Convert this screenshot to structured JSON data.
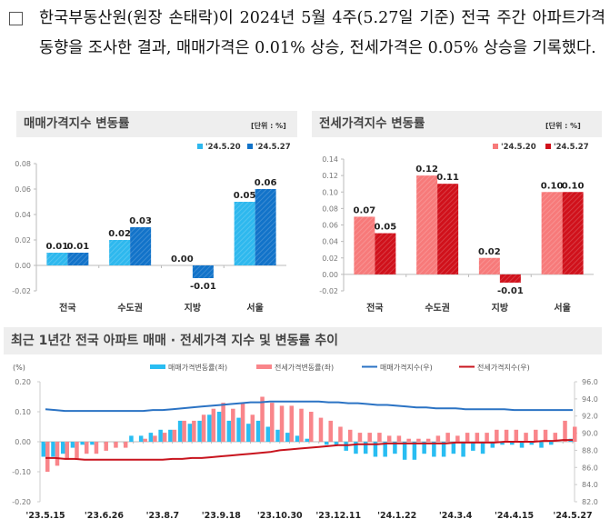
{
  "intro": {
    "bullet_icon": "empty-square-icon",
    "text": "한국부동산원(원장 손태락)이 2024년 5월 4주(5.27일 기준) 전국 주간 아파트가격 동향을 조사한 결과, 매매가격은 0.01% 상승, 전세가격은 0.05% 상승을 기록했다."
  },
  "colors": {
    "sale_prev": "#2EB8EE",
    "sale_curr": "#1273C9",
    "jeonse_prev": "#F77A7A",
    "jeonse_curr": "#D0111B",
    "sale_change": "#29BDF2",
    "jeonse_change": "#F9858A",
    "sale_index": "#2B73C4",
    "jeonse_index": "#C8141E",
    "title_bg": "#EEEEEE"
  },
  "chart_data": [
    {
      "type": "bar",
      "title": "매매가격지수 변동률",
      "unit_label": "[단위 : %]",
      "categories": [
        "전국",
        "수도권",
        "지방",
        "서울"
      ],
      "series": [
        {
          "name": "'24.5.20",
          "values": [
            0.01,
            0.02,
            0.0,
            0.05
          ],
          "labels": [
            "0.01",
            "0.02",
            "0.00",
            "0.05"
          ]
        },
        {
          "name": "'24.5.27",
          "values": [
            0.01,
            0.03,
            -0.01,
            0.06
          ],
          "labels": [
            "0.01",
            "0.03",
            "-0.01",
            "0.06"
          ]
        }
      ],
      "ylim": [
        -0.02,
        0.08
      ],
      "yticks": [
        "-0.02",
        "0.00",
        "0.02",
        "0.04",
        "0.06",
        "0.08"
      ],
      "ytick_values": [
        -0.02,
        0.0,
        0.02,
        0.04,
        0.06,
        0.08
      ],
      "legend": "top-right"
    },
    {
      "type": "bar",
      "title": "전세가격지수 변동률",
      "unit_label": "[단위 : %]",
      "categories": [
        "전국",
        "수도권",
        "지방",
        "서울"
      ],
      "series": [
        {
          "name": "'24.5.20",
          "values": [
            0.07,
            0.12,
            0.02,
            0.1
          ],
          "labels": [
            "0.07",
            "0.12",
            "0.02",
            "0.10"
          ]
        },
        {
          "name": "'24.5.27",
          "values": [
            0.05,
            0.11,
            -0.01,
            0.1
          ],
          "labels": [
            "0.05",
            "0.11",
            "-0.01",
            "0.10"
          ]
        }
      ],
      "ylim": [
        -0.02,
        0.14
      ],
      "yticks": [
        "-0.02",
        "0.00",
        "0.02",
        "0.04",
        "0.06",
        "0.08",
        "0.10",
        "0.12",
        "0.14"
      ],
      "ytick_values": [
        -0.02,
        0.0,
        0.02,
        0.04,
        0.06,
        0.08,
        0.1,
        0.12,
        0.14
      ],
      "legend": "top-right"
    },
    {
      "type": "bar+line",
      "title": "최근 1년간 전국 아파트 매매 · 전세가격 지수 및 변동률 추이",
      "ylabel_left": "(%)",
      "ylim_left": [
        -0.2,
        0.2
      ],
      "yticks_left": [
        "-0.20",
        "-0.10",
        "0.00",
        "0.10",
        "0.20"
      ],
      "ytick_values_left": [
        -0.2,
        -0.1,
        0.0,
        0.1,
        0.2
      ],
      "ylim_right": [
        82.0,
        96.0
      ],
      "yticks_right": [
        "82.0",
        "84.0",
        "86.0",
        "88.0",
        "90.0",
        "92.0",
        "94.0",
        "96.0"
      ],
      "ytick_values_right": [
        82,
        84,
        86,
        88,
        90,
        92,
        94,
        96
      ],
      "x_tick_labels": [
        "'23.5.15",
        "'23.6.26",
        "'23.8.7",
        "'23.9.18",
        "'23.10.30",
        "'23.12.11",
        "'24.1.22",
        "'24.3.4",
        "'24.4.15",
        "'24.5.27"
      ],
      "x_tick_every": 6,
      "legend": "top-center",
      "series": [
        {
          "name": "매매가격변동률(좌)",
          "kind": "bar",
          "axis": "left",
          "values": [
            -0.05,
            -0.05,
            -0.04,
            -0.02,
            -0.01,
            -0.01,
            0.0,
            0.0,
            0.0,
            0.02,
            0.02,
            0.03,
            0.04,
            0.04,
            0.07,
            0.06,
            0.07,
            0.09,
            0.1,
            0.07,
            0.08,
            0.06,
            0.07,
            0.05,
            0.04,
            0.03,
            0.02,
            0.01,
            0.0,
            -0.01,
            -0.01,
            -0.03,
            -0.04,
            -0.04,
            -0.05,
            -0.05,
            -0.04,
            -0.06,
            -0.06,
            -0.04,
            -0.05,
            -0.05,
            -0.04,
            -0.05,
            -0.03,
            -0.04,
            -0.02,
            -0.01,
            -0.01,
            -0.02,
            -0.01,
            -0.02,
            -0.01,
            0.0,
            0.01
          ]
        },
        {
          "name": "전세가격변동률(좌)",
          "kind": "bar",
          "axis": "left",
          "values": [
            -0.1,
            -0.08,
            -0.06,
            -0.06,
            -0.04,
            -0.04,
            -0.03,
            -0.02,
            -0.02,
            0.0,
            0.01,
            0.02,
            0.03,
            0.04,
            0.07,
            0.07,
            0.09,
            0.11,
            0.13,
            0.11,
            0.13,
            0.09,
            0.15,
            0.13,
            0.12,
            0.12,
            0.11,
            0.1,
            0.08,
            0.07,
            0.05,
            0.04,
            0.03,
            0.03,
            0.03,
            0.02,
            0.02,
            0.01,
            0.01,
            0.01,
            0.02,
            0.03,
            0.02,
            0.03,
            0.03,
            0.03,
            0.04,
            0.04,
            0.04,
            0.03,
            0.04,
            0.04,
            0.03,
            0.07,
            0.05
          ]
        },
        {
          "name": "매매가격지수(우)",
          "kind": "line",
          "axis": "right",
          "values": [
            92.8,
            92.7,
            92.6,
            92.6,
            92.6,
            92.6,
            92.6,
            92.6,
            92.6,
            92.6,
            92.6,
            92.7,
            92.7,
            92.8,
            92.9,
            93.0,
            93.1,
            93.2,
            93.3,
            93.4,
            93.5,
            93.6,
            93.6,
            93.7,
            93.7,
            93.7,
            93.7,
            93.7,
            93.7,
            93.6,
            93.6,
            93.5,
            93.5,
            93.4,
            93.3,
            93.3,
            93.2,
            93.1,
            93.0,
            93.0,
            92.9,
            92.9,
            92.9,
            92.8,
            92.8,
            92.8,
            92.8,
            92.8,
            92.7,
            92.7,
            92.7,
            92.7,
            92.7,
            92.7,
            92.7
          ]
        },
        {
          "name": "전세가격지수(우)",
          "kind": "line",
          "axis": "right",
          "values": [
            87.1,
            87.1,
            87.0,
            87.0,
            86.9,
            86.9,
            86.9,
            86.9,
            86.9,
            86.9,
            86.9,
            86.9,
            86.9,
            87.0,
            87.0,
            87.1,
            87.1,
            87.2,
            87.3,
            87.4,
            87.5,
            87.6,
            87.7,
            87.8,
            88.0,
            88.1,
            88.2,
            88.3,
            88.4,
            88.5,
            88.6,
            88.6,
            88.7,
            88.7,
            88.7,
            88.8,
            88.8,
            88.8,
            88.8,
            88.8,
            88.8,
            88.8,
            88.9,
            88.9,
            88.9,
            88.9,
            88.9,
            89.0,
            89.0,
            89.0,
            89.0,
            89.1,
            89.1,
            89.2,
            89.2
          ]
        }
      ]
    }
  ]
}
